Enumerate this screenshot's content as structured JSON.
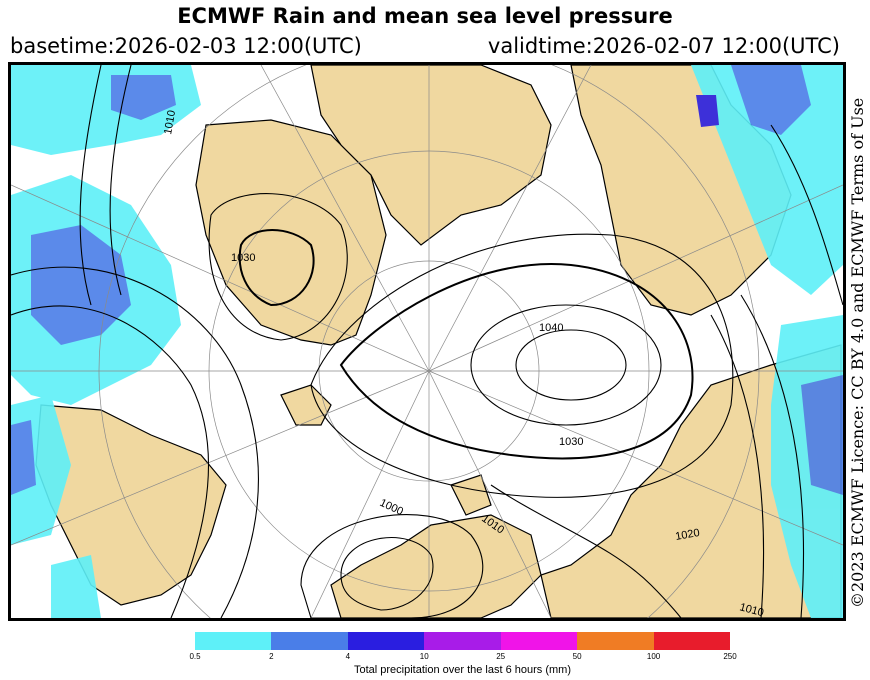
{
  "header": {
    "title": "ECMWF Rain and mean sea level pressure",
    "basetime": "basetime:2026-02-03 12:00(UTC)",
    "validtime": "validtime:2026-02-07 12:00(UTC)"
  },
  "credit": "©2023 ECMWF Licence: CC BY 4.0 and ECMWF Terms of Use",
  "contour_labels": [
    "1040",
    "1030",
    "1030",
    "1010",
    "1000",
    "1020",
    "1010",
    "1010"
  ],
  "legend": {
    "title": "Total precipitation over the last 6 hours (mm)",
    "ticks": [
      "0.5",
      "2",
      "4",
      "10",
      "25",
      "50",
      "100",
      "250"
    ],
    "colors": [
      "#5ef0f8",
      "#4a7ee8",
      "#2a1ee0",
      "#a81ce8",
      "#f014e8",
      "#f07c24",
      "#e81c2c"
    ]
  },
  "map_colors": {
    "land": "#f0d8a0",
    "ocean": "#ffffff",
    "precip_light": "#5ef0f8",
    "precip_medium": "#4a7ee8",
    "precip_heavy": "#2a1ee0"
  }
}
